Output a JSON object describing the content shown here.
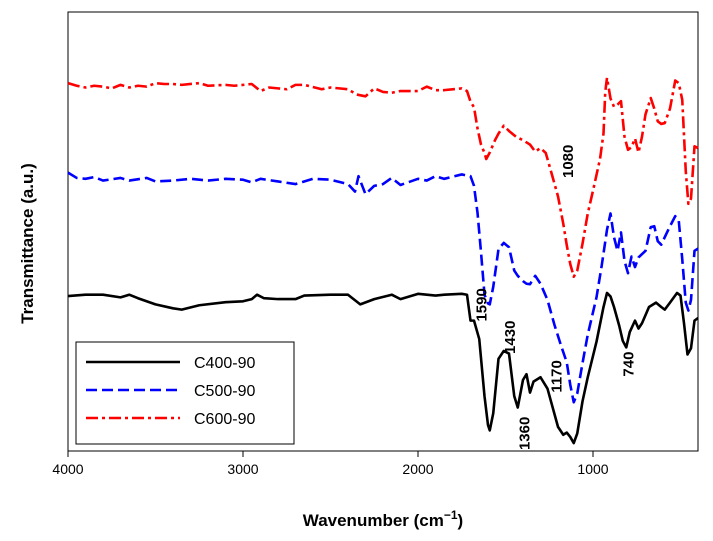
{
  "chart_data": {
    "type": "line",
    "title": "",
    "xlabel": "Wavenumber (cm",
    "xlabel_sup": "−1",
    "xlabel_close": ")",
    "ylabel": "Transmittance (a.u.)",
    "xlim": [
      4000,
      400
    ],
    "ylim": [
      0,
      1
    ],
    "xticks": [
      4000,
      3000,
      2000,
      1000
    ],
    "xtick_labels": [
      "4000",
      "3000",
      "2000",
      "1000"
    ],
    "y_ticks_shown": false,
    "legend_position": "bottom-left",
    "series": [
      {
        "name": "C400-90",
        "color": "#000000",
        "style": "solid",
        "points": [
          [
            4000,
            0.353
          ],
          [
            3900,
            0.356
          ],
          [
            3800,
            0.356
          ],
          [
            3700,
            0.35
          ],
          [
            3650,
            0.356
          ],
          [
            3600,
            0.348
          ],
          [
            3500,
            0.334
          ],
          [
            3400,
            0.325
          ],
          [
            3350,
            0.322
          ],
          [
            3250,
            0.332
          ],
          [
            3100,
            0.339
          ],
          [
            3000,
            0.341
          ],
          [
            2950,
            0.346
          ],
          [
            2920,
            0.356
          ],
          [
            2880,
            0.348
          ],
          [
            2800,
            0.346
          ],
          [
            2700,
            0.346
          ],
          [
            2650,
            0.354
          ],
          [
            2500,
            0.356
          ],
          [
            2400,
            0.356
          ],
          [
            2330,
            0.334
          ],
          [
            2250,
            0.346
          ],
          [
            2150,
            0.356
          ],
          [
            2100,
            0.346
          ],
          [
            2000,
            0.358
          ],
          [
            1900,
            0.354
          ],
          [
            1850,
            0.356
          ],
          [
            1750,
            0.358
          ],
          [
            1720,
            0.356
          ],
          [
            1700,
            0.297
          ],
          [
            1680,
            0.297
          ],
          [
            1650,
            0.255
          ],
          [
            1620,
            0.125
          ],
          [
            1600,
            0.059
          ],
          [
            1590,
            0.047
          ],
          [
            1570,
            0.086
          ],
          [
            1540,
            0.21
          ],
          [
            1510,
            0.228
          ],
          [
            1480,
            0.222
          ],
          [
            1450,
            0.125
          ],
          [
            1430,
            0.099
          ],
          [
            1400,
            0.162
          ],
          [
            1380,
            0.175
          ],
          [
            1360,
            0.133
          ],
          [
            1340,
            0.158
          ],
          [
            1300,
            0.168
          ],
          [
            1260,
            0.142
          ],
          [
            1200,
            0.055
          ],
          [
            1170,
            0.037
          ],
          [
            1150,
            0.042
          ],
          [
            1130,
            0.032
          ],
          [
            1110,
            0.018
          ],
          [
            1090,
            0.04
          ],
          [
            1060,
            0.113
          ],
          [
            1030,
            0.168
          ],
          [
            980,
            0.249
          ],
          [
            940,
            0.328
          ],
          [
            920,
            0.36
          ],
          [
            900,
            0.352
          ],
          [
            880,
            0.328
          ],
          [
            850,
            0.285
          ],
          [
            830,
            0.251
          ],
          [
            810,
            0.236
          ],
          [
            790,
            0.271
          ],
          [
            760,
            0.297
          ],
          [
            740,
            0.279
          ],
          [
            720,
            0.291
          ],
          [
            680,
            0.328
          ],
          [
            640,
            0.338
          ],
          [
            610,
            0.328
          ],
          [
            590,
            0.322
          ],
          [
            560,
            0.338
          ],
          [
            520,
            0.36
          ],
          [
            500,
            0.354
          ],
          [
            480,
            0.291
          ],
          [
            460,
            0.22
          ],
          [
            440,
            0.234
          ],
          [
            420,
            0.297
          ],
          [
            400,
            0.303
          ]
        ]
      },
      {
        "name": "C500-90",
        "color": "#0000ff",
        "style": "dashed",
        "points": [
          [
            4000,
            0.634
          ],
          [
            3950,
            0.622
          ],
          [
            3900,
            0.62
          ],
          [
            3850,
            0.624
          ],
          [
            3800,
            0.616
          ],
          [
            3700,
            0.622
          ],
          [
            3650,
            0.616
          ],
          [
            3550,
            0.622
          ],
          [
            3500,
            0.614
          ],
          [
            3400,
            0.616
          ],
          [
            3300,
            0.62
          ],
          [
            3200,
            0.616
          ],
          [
            3100,
            0.62
          ],
          [
            3000,
            0.618
          ],
          [
            2950,
            0.612
          ],
          [
            2900,
            0.62
          ],
          [
            2800,
            0.614
          ],
          [
            2700,
            0.608
          ],
          [
            2600,
            0.62
          ],
          [
            2500,
            0.618
          ],
          [
            2400,
            0.608
          ],
          [
            2360,
            0.591
          ],
          [
            2340,
            0.626
          ],
          [
            2300,
            0.585
          ],
          [
            2250,
            0.604
          ],
          [
            2200,
            0.608
          ],
          [
            2150,
            0.622
          ],
          [
            2100,
            0.606
          ],
          [
            2000,
            0.62
          ],
          [
            1950,
            0.616
          ],
          [
            1900,
            0.626
          ],
          [
            1850,
            0.62
          ],
          [
            1750,
            0.63
          ],
          [
            1700,
            0.626
          ],
          [
            1680,
            0.604
          ],
          [
            1660,
            0.543
          ],
          [
            1640,
            0.453
          ],
          [
            1620,
            0.356
          ],
          [
            1600,
            0.336
          ],
          [
            1590,
            0.334
          ],
          [
            1570,
            0.374
          ],
          [
            1540,
            0.46
          ],
          [
            1510,
            0.474
          ],
          [
            1480,
            0.464
          ],
          [
            1450,
            0.411
          ],
          [
            1430,
            0.399
          ],
          [
            1400,
            0.387
          ],
          [
            1380,
            0.381
          ],
          [
            1360,
            0.38
          ],
          [
            1330,
            0.399
          ],
          [
            1300,
            0.381
          ],
          [
            1260,
            0.344
          ],
          [
            1220,
            0.287
          ],
          [
            1180,
            0.237
          ],
          [
            1150,
            0.202
          ],
          [
            1130,
            0.151
          ],
          [
            1110,
            0.111
          ],
          [
            1090,
            0.131
          ],
          [
            1060,
            0.2
          ],
          [
            1030,
            0.265
          ],
          [
            980,
            0.35
          ],
          [
            950,
            0.423
          ],
          [
            920,
            0.504
          ],
          [
            900,
            0.541
          ],
          [
            880,
            0.487
          ],
          [
            860,
            0.456
          ],
          [
            840,
            0.498
          ],
          [
            820,
            0.433
          ],
          [
            800,
            0.405
          ],
          [
            780,
            0.443
          ],
          [
            760,
            0.419
          ],
          [
            740,
            0.441
          ],
          [
            700,
            0.456
          ],
          [
            670,
            0.51
          ],
          [
            650,
            0.512
          ],
          [
            630,
            0.478
          ],
          [
            610,
            0.47
          ],
          [
            590,
            0.487
          ],
          [
            560,
            0.512
          ],
          [
            530,
            0.535
          ],
          [
            510,
            0.525
          ],
          [
            490,
            0.437
          ],
          [
            470,
            0.338
          ],
          [
            455,
            0.32
          ],
          [
            440,
            0.344
          ],
          [
            420,
            0.456
          ],
          [
            400,
            0.461
          ]
        ]
      },
      {
        "name": "C600-90",
        "color": "#ff0000",
        "style": "dashdot",
        "points": [
          [
            4000,
            0.838
          ],
          [
            3950,
            0.832
          ],
          [
            3900,
            0.828
          ],
          [
            3850,
            0.832
          ],
          [
            3800,
            0.83
          ],
          [
            3750,
            0.826
          ],
          [
            3700,
            0.834
          ],
          [
            3650,
            0.828
          ],
          [
            3600,
            0.832
          ],
          [
            3550,
            0.83
          ],
          [
            3500,
            0.838
          ],
          [
            3450,
            0.836
          ],
          [
            3400,
            0.836
          ],
          [
            3350,
            0.834
          ],
          [
            3250,
            0.838
          ],
          [
            3200,
            0.832
          ],
          [
            3100,
            0.834
          ],
          [
            3050,
            0.832
          ],
          [
            2950,
            0.836
          ],
          [
            2900,
            0.82
          ],
          [
            2850,
            0.828
          ],
          [
            2800,
            0.826
          ],
          [
            2750,
            0.824
          ],
          [
            2700,
            0.834
          ],
          [
            2650,
            0.834
          ],
          [
            2550,
            0.824
          ],
          [
            2500,
            0.828
          ],
          [
            2450,
            0.826
          ],
          [
            2400,
            0.824
          ],
          [
            2350,
            0.812
          ],
          [
            2300,
            0.808
          ],
          [
            2250,
            0.826
          ],
          [
            2200,
            0.818
          ],
          [
            2150,
            0.816
          ],
          [
            2100,
            0.82
          ],
          [
            2000,
            0.82
          ],
          [
            1950,
            0.83
          ],
          [
            1900,
            0.822
          ],
          [
            1850,
            0.822
          ],
          [
            1750,
            0.826
          ],
          [
            1720,
            0.82
          ],
          [
            1700,
            0.796
          ],
          [
            1680,
            0.783
          ],
          [
            1660,
            0.735
          ],
          [
            1640,
            0.698
          ],
          [
            1620,
            0.679
          ],
          [
            1610,
            0.665
          ],
          [
            1590,
            0.68
          ],
          [
            1560,
            0.708
          ],
          [
            1540,
            0.723
          ],
          [
            1510,
            0.741
          ],
          [
            1480,
            0.729
          ],
          [
            1440,
            0.716
          ],
          [
            1400,
            0.708
          ],
          [
            1360,
            0.698
          ],
          [
            1330,
            0.682
          ],
          [
            1300,
            0.69
          ],
          [
            1270,
            0.679
          ],
          [
            1230,
            0.623
          ],
          [
            1200,
            0.58
          ],
          [
            1170,
            0.518
          ],
          [
            1150,
            0.469
          ],
          [
            1130,
            0.426
          ],
          [
            1110,
            0.397
          ],
          [
            1090,
            0.411
          ],
          [
            1060,
            0.472
          ],
          [
            1030,
            0.541
          ],
          [
            1000,
            0.593
          ],
          [
            960,
            0.665
          ],
          [
            940,
            0.723
          ],
          [
            930,
            0.818
          ],
          [
            920,
            0.85
          ],
          [
            900,
            0.803
          ],
          [
            880,
            0.784
          ],
          [
            860,
            0.789
          ],
          [
            840,
            0.797
          ],
          [
            820,
            0.716
          ],
          [
            800,
            0.686
          ],
          [
            780,
            0.692
          ],
          [
            760,
            0.712
          ],
          [
            740,
            0.68
          ],
          [
            720,
            0.716
          ],
          [
            700,
            0.767
          ],
          [
            670,
            0.804
          ],
          [
            650,
            0.78
          ],
          [
            630,
            0.751
          ],
          [
            610,
            0.745
          ],
          [
            590,
            0.747
          ],
          [
            560,
            0.78
          ],
          [
            530,
            0.844
          ],
          [
            510,
            0.838
          ],
          [
            490,
            0.8
          ],
          [
            470,
            0.638
          ],
          [
            455,
            0.563
          ],
          [
            440,
            0.575
          ],
          [
            420,
            0.694
          ],
          [
            400,
            0.69
          ]
        ]
      }
    ],
    "annotations": [
      {
        "text": "1080",
        "wavenumber": 1115,
        "level": 0.66
      },
      {
        "text": "1590",
        "wavenumber": 1610,
        "level": 0.333
      },
      {
        "text": "1430",
        "wavenumber": 1445,
        "level": 0.259
      },
      {
        "text": "1360",
        "wavenumber": 1362,
        "level": 0.04
      },
      {
        "text": "1170",
        "wavenumber": 1180,
        "level": 0.17
      },
      {
        "text": "740",
        "wavenumber": 768,
        "level": 0.198
      }
    ],
    "legend_labels": [
      "C400-90",
      "C500-90",
      "C600-90"
    ]
  }
}
